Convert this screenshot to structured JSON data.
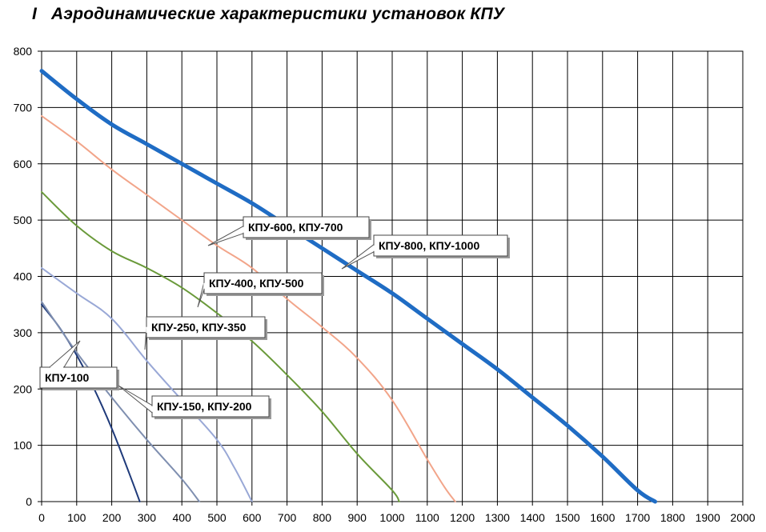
{
  "chart_data": {
    "type": "line",
    "title": "Аэродинамические характеристики установок КПУ",
    "title_prefix": "I",
    "xlabel": "",
    "ylabel": "",
    "xlim": [
      0,
      2000
    ],
    "ylim": [
      0,
      800
    ],
    "x_ticks": [
      0,
      100,
      200,
      300,
      400,
      500,
      600,
      700,
      800,
      900,
      1000,
      1100,
      1200,
      1300,
      1400,
      1500,
      1600,
      1700,
      1800,
      1900,
      2000
    ],
    "y_ticks": [
      0,
      100,
      200,
      300,
      400,
      500,
      600,
      700,
      800
    ],
    "grid": true,
    "legend": "callouts",
    "series": [
      {
        "name": "КПУ-100",
        "color": "#1f3a7a",
        "width": 2,
        "x": [
          0,
          50,
          100,
          150,
          200,
          250,
          280
        ],
        "y": [
          350,
          310,
          260,
          200,
          130,
          50,
          0
        ]
      },
      {
        "name": "КПУ-150, КПУ-200",
        "color": "#7f8fb0",
        "width": 2,
        "x": [
          0,
          100,
          200,
          300,
          400,
          450
        ],
        "y": [
          355,
          265,
          185,
          110,
          40,
          0
        ]
      },
      {
        "name": "КПУ-250, КПУ-350",
        "color": "#99a8d6",
        "width": 2,
        "x": [
          0,
          100,
          200,
          300,
          400,
          500,
          550,
          600
        ],
        "y": [
          415,
          370,
          325,
          250,
          180,
          110,
          60,
          0
        ]
      },
      {
        "name": "КПУ-400, КПУ-500",
        "color": "#6a9a3a",
        "width": 2,
        "x": [
          0,
          100,
          200,
          300,
          400,
          500,
          600,
          700,
          800,
          900,
          1000,
          1020
        ],
        "y": [
          550,
          490,
          445,
          415,
          380,
          335,
          285,
          225,
          160,
          85,
          20,
          0
        ]
      },
      {
        "name": "КПУ-600, КПУ-700",
        "color": "#f2a58a",
        "width": 2,
        "x": [
          0,
          100,
          200,
          300,
          400,
          500,
          600,
          700,
          800,
          900,
          1000,
          1100,
          1150,
          1180
        ],
        "y": [
          685,
          640,
          590,
          545,
          500,
          455,
          415,
          360,
          310,
          255,
          180,
          75,
          25,
          0
        ]
      },
      {
        "name": "КПУ-800, КПУ-1000",
        "color": "#1f6cc4",
        "width": 5,
        "x": [
          0,
          100,
          200,
          300,
          400,
          500,
          600,
          700,
          800,
          900,
          1000,
          1100,
          1200,
          1300,
          1400,
          1500,
          1600,
          1700,
          1750
        ],
        "y": [
          765,
          715,
          670,
          635,
          600,
          565,
          530,
          490,
          450,
          410,
          370,
          325,
          280,
          235,
          185,
          135,
          80,
          20,
          0
        ]
      }
    ],
    "callouts": [
      {
        "label": "КПУ-100",
        "series": "КПУ-100"
      },
      {
        "label": "КПУ-150, КПУ-200",
        "series": "КПУ-150, КПУ-200"
      },
      {
        "label": "КПУ-250, КПУ-350",
        "series": "КПУ-250, КПУ-350"
      },
      {
        "label": "КПУ-400, КПУ-500",
        "series": "КПУ-400, КПУ-500"
      },
      {
        "label": "КПУ-600, КПУ-700",
        "series": "КПУ-600, КПУ-700"
      },
      {
        "label": "КПУ-800, КПУ-1000",
        "series": "КПУ-800, КПУ-1000"
      }
    ]
  }
}
